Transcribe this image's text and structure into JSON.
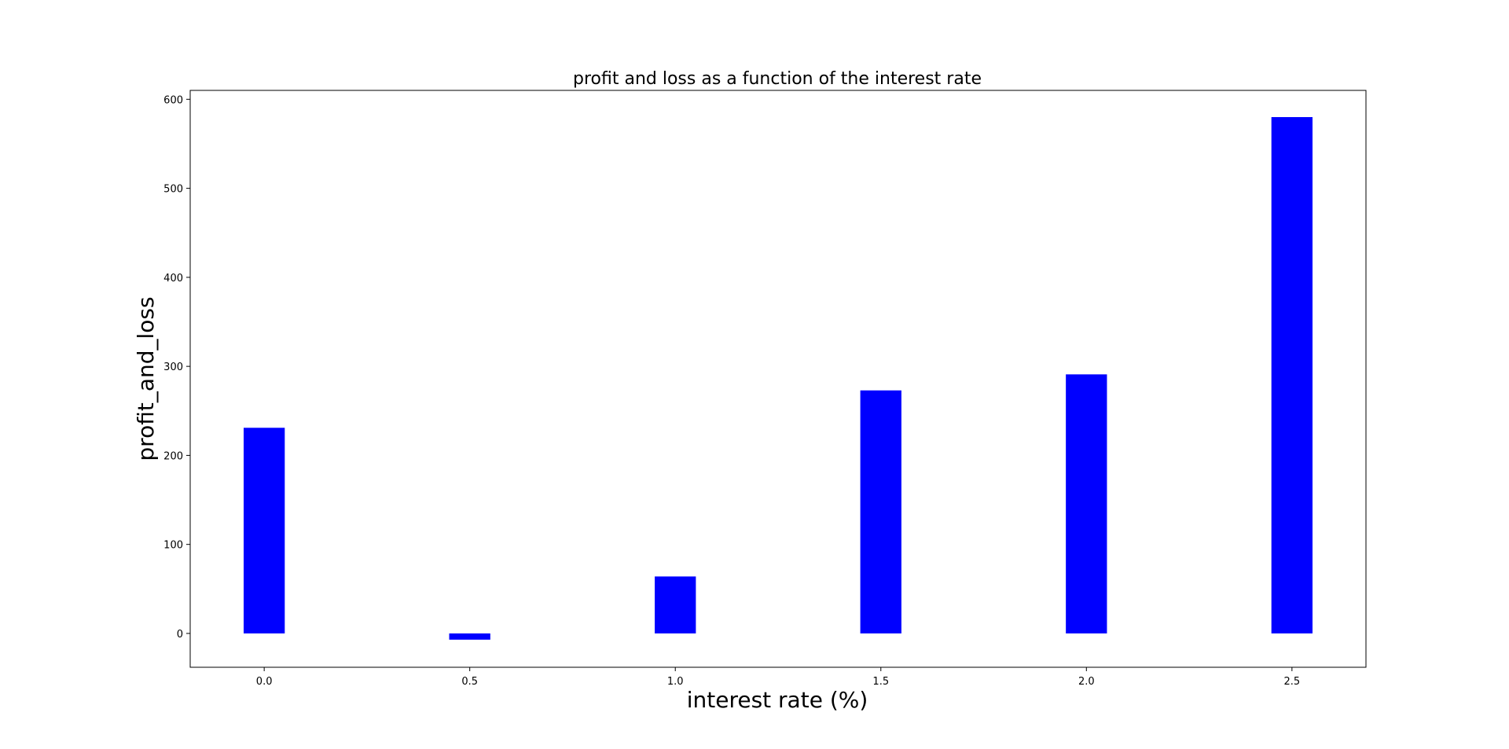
{
  "chart_data": {
    "type": "bar",
    "title": "profit and loss as a function of the interest rate",
    "xlabel": "interest rate (%)",
    "ylabel": "profit_and_loss",
    "x": [
      0.0,
      0.5,
      1.0,
      1.5,
      2.0,
      2.5
    ],
    "values": [
      231,
      -7,
      64,
      273,
      291,
      580
    ],
    "bar_width": 0.1,
    "xlim": [
      -0.18,
      2.68
    ],
    "ylim": [
      -38,
      610
    ],
    "xticks": [
      0.0,
      0.5,
      1.0,
      1.5,
      2.0,
      2.5
    ],
    "xtick_labels": [
      "0.0",
      "0.5",
      "1.0",
      "1.5",
      "2.0",
      "2.5"
    ],
    "yticks": [
      0,
      100,
      200,
      300,
      400,
      500,
      600
    ],
    "ytick_labels": [
      "0",
      "100",
      "200",
      "300",
      "400",
      "500",
      "600"
    ],
    "bar_color": "#0000ff",
    "grid": false,
    "legend": "none"
  }
}
